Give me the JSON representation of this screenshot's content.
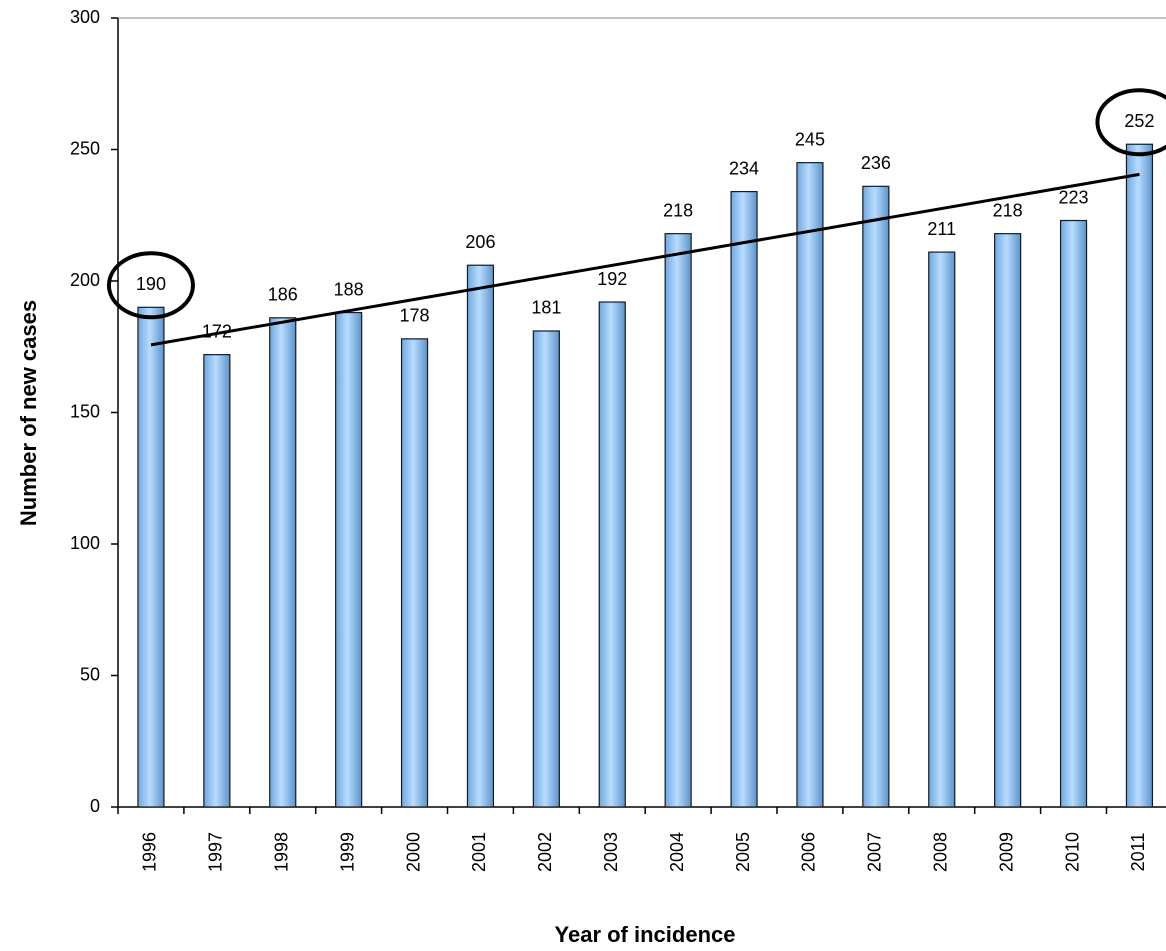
{
  "chart_data": {
    "type": "bar",
    "x_label": "Year of incidence",
    "y_label": "Number of new cases",
    "categories": [
      "1996",
      "1997",
      "1998",
      "1999",
      "2000",
      "2001",
      "2002",
      "2003",
      "2004",
      "2005",
      "2006",
      "2007",
      "2008",
      "2009",
      "2010",
      "2011"
    ],
    "values": [
      190,
      172,
      186,
      188,
      178,
      206,
      181,
      192,
      218,
      234,
      245,
      236,
      211,
      218,
      223,
      252
    ],
    "color": "#99ccff",
    "ylim": [
      0,
      300
    ],
    "yticks": [
      0,
      50,
      100,
      150,
      200,
      250,
      300
    ],
    "trendline": true,
    "highlight": [
      0,
      15
    ],
    "grid": false
  }
}
